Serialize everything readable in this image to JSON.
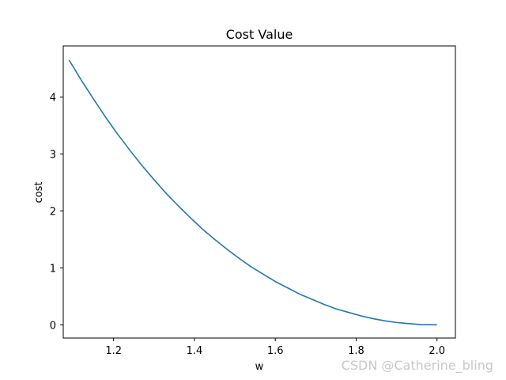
{
  "chart_data": {
    "type": "line",
    "title": "Cost Value",
    "xlabel": "w",
    "ylabel": "cost",
    "xlim": [
      1.0755,
      2.0455
    ],
    "ylim": [
      -0.233,
      4.9
    ],
    "xticks": [
      1.2,
      1.4,
      1.6,
      1.8,
      2.0
    ],
    "xtick_labels": [
      "1.2",
      "1.4",
      "1.6",
      "1.8",
      "2.0"
    ],
    "yticks": [
      0,
      1,
      2,
      3,
      4
    ],
    "ytick_labels": [
      "0",
      "1",
      "2",
      "3",
      "4"
    ],
    "grid": false,
    "series": [
      {
        "color": "#1f77b4",
        "x": [
          1.09,
          1.12,
          1.15,
          1.18,
          1.21,
          1.24,
          1.27,
          1.3,
          1.33,
          1.36,
          1.39,
          1.42,
          1.45,
          1.48,
          1.51,
          1.54,
          1.57,
          1.6,
          1.63,
          1.66,
          1.69,
          1.72,
          1.75,
          1.78,
          1.81,
          1.84,
          1.87,
          1.9,
          1.93,
          1.96,
          1.99,
          2.0
        ],
        "y": [
          4.65,
          4.3,
          3.97,
          3.65,
          3.35,
          3.07,
          2.8,
          2.55,
          2.31,
          2.09,
          1.88,
          1.68,
          1.5,
          1.33,
          1.17,
          1.02,
          0.89,
          0.76,
          0.65,
          0.54,
          0.45,
          0.36,
          0.28,
          0.22,
          0.16,
          0.11,
          0.07,
          0.04,
          0.02,
          0.005,
          0.0003,
          0.0
        ]
      }
    ]
  },
  "watermark": "CSDN @Catherine_bling"
}
